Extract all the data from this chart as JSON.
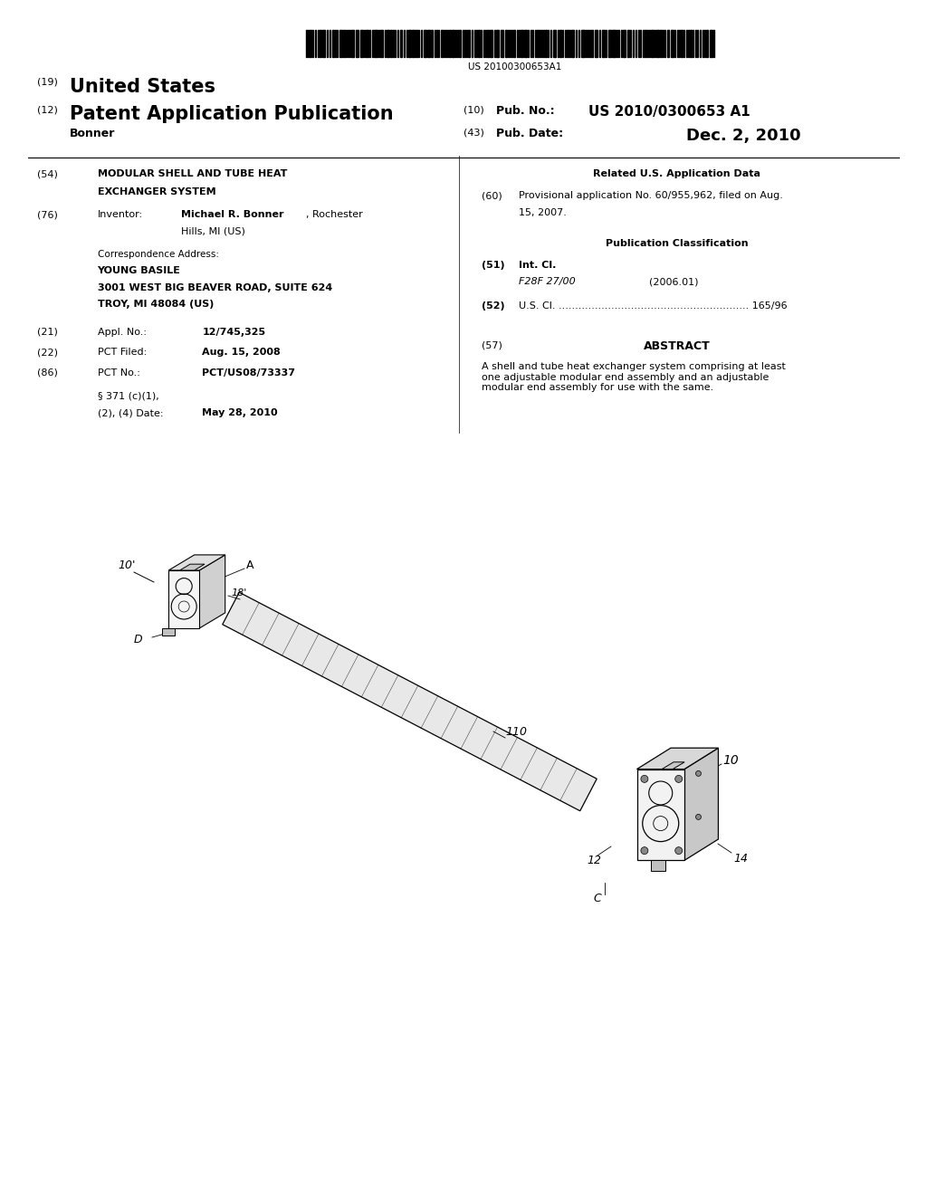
{
  "bg_color": "#ffffff",
  "barcode_text": "US 20100300653A1",
  "title": "MODULAR SHELL AND TUBE HEAT EXCHANGER SYSTEM",
  "inventor": "Michael R. Bonner",
  "inventor_loc": "Rochester Hills, MI (US)",
  "corr_name": "YOUNG BASILE",
  "corr_addr1": "3001 WEST BIG BEAVER ROAD, SUITE 624",
  "corr_addr2": "TROY, MI 48084 (US)",
  "appl_no": "12/745,325",
  "pct_filed": "Aug. 15, 2008",
  "pct_no": "PCT/US08/73337",
  "date_371": "May 28, 2010",
  "pub_no": "US 2010/0300653 A1",
  "pub_date": "Dec. 2, 2010",
  "inventor_name": "Bonner",
  "int_cl_code": "F28F 27/00",
  "int_cl_year": "(2006.01)",
  "us_cl": "165/96",
  "prov_app": "Provisional application No. 60/955,962, filed on Aug. 15, 2007.",
  "abstract": "A shell and tube heat exchanger system comprising at least one adjustable modular end assembly and an adjustable modular end assembly for use with the same."
}
